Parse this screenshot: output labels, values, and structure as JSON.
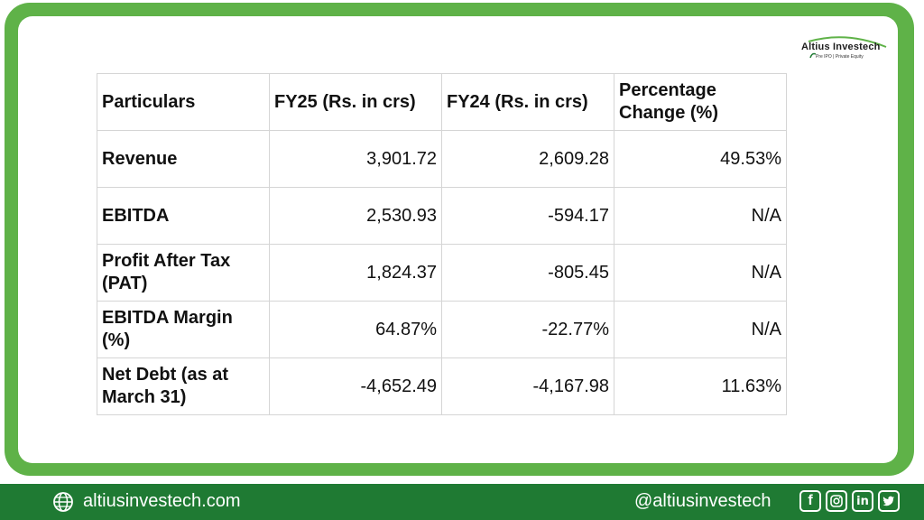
{
  "brand": {
    "name": "Altius Investech",
    "tagline": "Pre IPO | Private Equity",
    "green": "#5fb248",
    "dark_green": "#1f7a33"
  },
  "table": {
    "headers": [
      "Particulars",
      "FY25 (Rs. in crs)",
      "FY24 (Rs. in crs)",
      "Percentage Change (%)"
    ],
    "rows": [
      {
        "label": "Revenue",
        "fy25": "3,901.72",
        "fy24": "2,609.28",
        "change": "49.53%"
      },
      {
        "label": "EBITDA",
        "fy25": "2,530.93",
        "fy24": "-594.17",
        "change": "N/A"
      },
      {
        "label": "Profit After Tax (PAT)",
        "fy25": "1,824.37",
        "fy24": "-805.45",
        "change": "N/A"
      },
      {
        "label": "EBITDA Margin (%)",
        "fy25": "64.87%",
        "fy24": "-22.77%",
        "change": "N/A"
      },
      {
        "label": "Net Debt (as at March 31)",
        "fy25": "-4,652.49",
        "fy24": "-4,167.98",
        "change": "11.63%"
      }
    ]
  },
  "footer": {
    "website": "altiusinvestech.com",
    "handle": "@altiusinvestech",
    "icons": [
      "globe-icon",
      "facebook-icon",
      "instagram-icon",
      "linkedin-icon",
      "twitter-icon"
    ]
  }
}
